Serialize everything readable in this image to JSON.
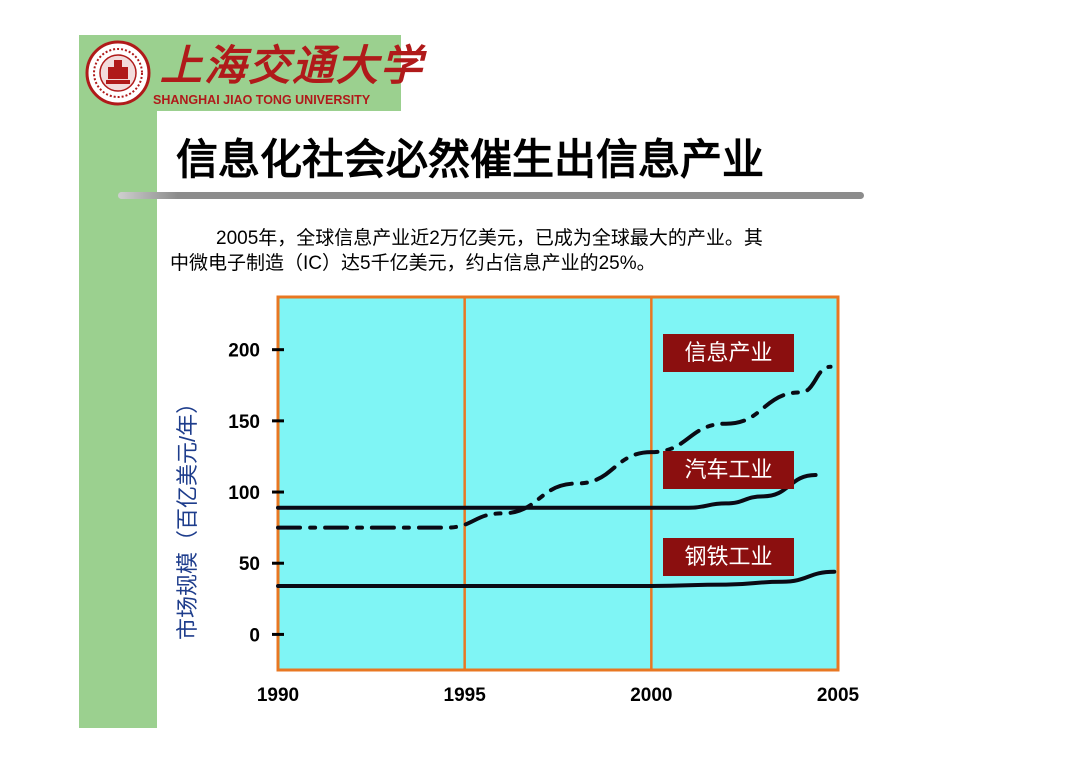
{
  "header": {
    "logo_cn": "上海交通大学",
    "logo_en": "SHANGHAI JIAO TONG UNIVERSITY"
  },
  "slide": {
    "title": "信息化社会必然催生出信息产业",
    "paragraph_line1": "2005年，全球信息产业近2万亿美元，已成为全球最大的产业。其",
    "paragraph_line2": "中微电子制造（IC）达5千亿美元，约占信息产业的25%。"
  },
  "chart_data": {
    "type": "line",
    "xlabel": "",
    "ylabel": "市场规模（百亿美元/年）",
    "xlim": [
      1990,
      2005
    ],
    "ylim": [
      -25,
      237
    ],
    "x_ticks": [
      1990,
      1995,
      2000,
      2005
    ],
    "y_ticks": [
      0,
      50,
      100,
      150,
      200
    ],
    "plot_background": "#7ff5f5",
    "frame_color": "#e87722",
    "vertical_grid": [
      1995,
      2000
    ],
    "series": [
      {
        "name": "信息产业",
        "style": "dash-dot",
        "x": [
          1990,
          1994.5,
          1996,
          1998,
          2000,
          2002,
          2004,
          2004.8
        ],
        "y": [
          75,
          75,
          85,
          106,
          128,
          148,
          170,
          188
        ]
      },
      {
        "name": "汽车工业",
        "style": "solid",
        "x": [
          1990,
          2001,
          2002,
          2003,
          2004.4
        ],
        "y": [
          89,
          89,
          92,
          97,
          112
        ]
      },
      {
        "name": "钢铁工业",
        "style": "solid",
        "x": [
          1990,
          2000,
          2002,
          2003.5,
          2004.9
        ],
        "y": [
          34,
          34,
          35,
          37,
          44
        ]
      }
    ]
  }
}
